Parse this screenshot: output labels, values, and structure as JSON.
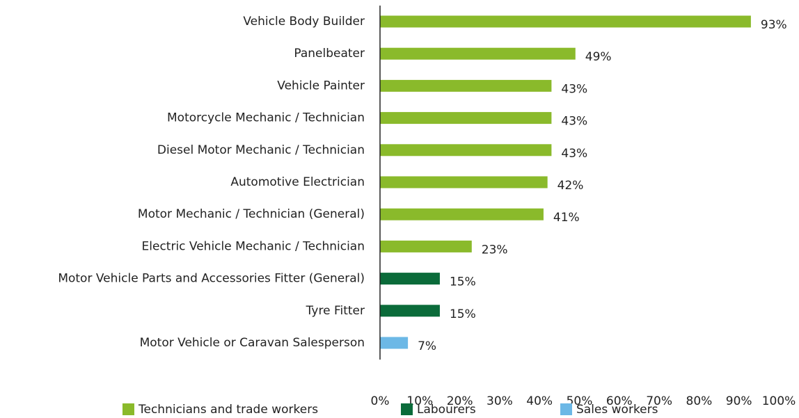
{
  "chart_data": {
    "type": "bar",
    "orientation": "horizontal",
    "categories": [
      "Vehicle Body Builder",
      "Panelbeater",
      "Vehicle Painter",
      "Motorcycle Mechanic / Technician",
      "Diesel Motor Mechanic / Technician",
      "Automotive Electrician",
      "Motor Mechanic / Technician (General)",
      "Electric Vehicle Mechanic / Technician",
      "Motor Vehicle Parts and Accessories Fitter (General)",
      "Tyre Fitter",
      "Motor Vehicle or Caravan Salesperson"
    ],
    "series": [
      {
        "name": "Technicians and trade workers",
        "color": "#8aba2b",
        "values": [
          93,
          49,
          43,
          43,
          43,
          42,
          41,
          23,
          null,
          null,
          null
        ],
        "value_labels": [
          "93%",
          "49%",
          "43%",
          "43%",
          "43%",
          "42%",
          "41%",
          "23%",
          null,
          null,
          null
        ]
      },
      {
        "name": "Labourers",
        "color": "#0b6b3a",
        "values": [
          null,
          null,
          null,
          null,
          null,
          null,
          null,
          null,
          15,
          15,
          null
        ],
        "value_labels": [
          null,
          null,
          null,
          null,
          null,
          null,
          null,
          null,
          "15%",
          "15%",
          null
        ]
      },
      {
        "name": "Sales workers",
        "color": "#6cb8e6",
        "values": [
          null,
          null,
          null,
          null,
          null,
          null,
          null,
          null,
          null,
          null,
          7
        ],
        "value_labels": [
          null,
          null,
          null,
          null,
          null,
          null,
          null,
          null,
          null,
          null,
          "7%"
        ]
      }
    ],
    "xlim": [
      0,
      100
    ],
    "xticks": [
      {
        "value": 0,
        "label": "0%"
      },
      {
        "value": 10,
        "label": "10%"
      },
      {
        "value": 20,
        "label": "20%"
      },
      {
        "value": 30,
        "label": "30%"
      },
      {
        "value": 40,
        "label": "40%"
      },
      {
        "value": 50,
        "label": "50%"
      },
      {
        "value": 60,
        "label": "60%"
      },
      {
        "value": 70,
        "label": "70%"
      },
      {
        "value": 80,
        "label": "80%"
      },
      {
        "value": 90,
        "label": "90%"
      },
      {
        "value": 100,
        "label": "100%"
      }
    ],
    "legend": "bottom",
    "grid": false
  }
}
